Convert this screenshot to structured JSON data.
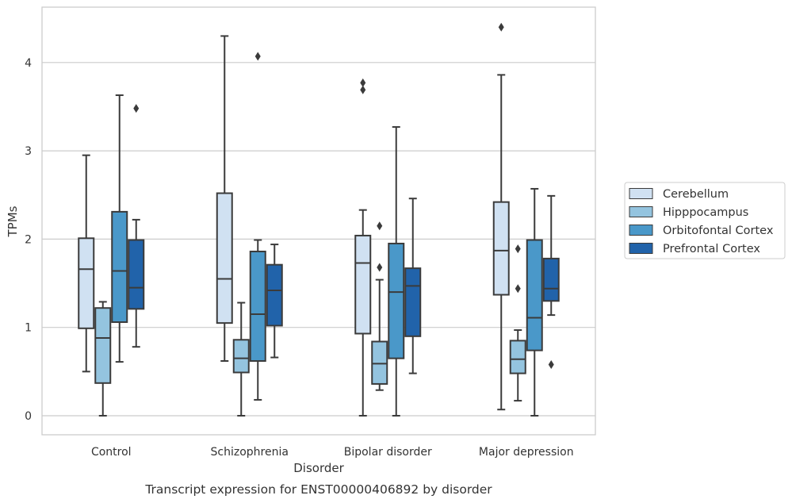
{
  "chart_data": {
    "type": "box",
    "xlabel": "Disorder",
    "ylabel": "TPMs",
    "caption": "Transcript expression for ENST00000406892 by disorder",
    "ylim": [
      -0.2,
      4.65
    ],
    "yticks": [
      "0",
      "1",
      "2",
      "3",
      "4"
    ],
    "ytick_values": [
      0,
      1,
      2,
      3,
      4
    ],
    "grid": "horizontal",
    "legend_position": "right",
    "categories": [
      "Control",
      "Schizophrenia",
      "Bipolar disorder",
      "Major depression"
    ],
    "series": [
      {
        "name": "Cerebellum",
        "color": "#d0e1f2",
        "boxes": [
          {
            "whislo": 0.5,
            "q1": 0.99,
            "med": 1.66,
            "q3": 2.01,
            "whishi": 2.95,
            "fliers": []
          },
          {
            "whislo": 0.62,
            "q1": 1.05,
            "med": 1.55,
            "q3": 2.52,
            "whishi": 4.3,
            "fliers": []
          },
          {
            "whislo": 0.0,
            "q1": 0.93,
            "med": 1.73,
            "q3": 2.04,
            "whishi": 2.33,
            "fliers": [
              3.69,
              3.77
            ]
          },
          {
            "whislo": 0.07,
            "q1": 1.37,
            "med": 1.87,
            "q3": 2.42,
            "whishi": 3.86,
            "fliers": [
              4.4
            ]
          }
        ]
      },
      {
        "name": "Hipppocampus",
        "color": "#94c4df",
        "boxes": [
          {
            "whislo": 0.0,
            "q1": 0.37,
            "med": 0.88,
            "q3": 1.22,
            "whishi": 1.29,
            "fliers": []
          },
          {
            "whislo": 0.0,
            "q1": 0.49,
            "med": 0.65,
            "q3": 0.86,
            "whishi": 1.28,
            "fliers": []
          },
          {
            "whislo": 0.29,
            "q1": 0.36,
            "med": 0.59,
            "q3": 0.84,
            "whishi": 1.54,
            "fliers": [
              1.68,
              2.15
            ]
          },
          {
            "whislo": 0.17,
            "q1": 0.48,
            "med": 0.64,
            "q3": 0.85,
            "whishi": 0.97,
            "fliers": [
              1.44,
              1.89
            ]
          }
        ]
      },
      {
        "name": "Orbitofontal Cortex",
        "color": "#4a98c9",
        "boxes": [
          {
            "whislo": 0.61,
            "q1": 1.06,
            "med": 1.64,
            "q3": 2.31,
            "whishi": 3.63,
            "fliers": []
          },
          {
            "whislo": 0.18,
            "q1": 0.62,
            "med": 1.15,
            "q3": 1.86,
            "whishi": 1.99,
            "fliers": [
              4.07
            ]
          },
          {
            "whislo": 0.0,
            "q1": 0.65,
            "med": 1.4,
            "q3": 1.95,
            "whishi": 3.27,
            "fliers": []
          },
          {
            "whislo": 0.0,
            "q1": 0.74,
            "med": 1.11,
            "q3": 1.99,
            "whishi": 2.57,
            "fliers": []
          }
        ]
      },
      {
        "name": "Prefrontal Cortex",
        "color": "#2163aa",
        "boxes": [
          {
            "whislo": 0.78,
            "q1": 1.21,
            "med": 1.45,
            "q3": 1.99,
            "whishi": 2.22,
            "fliers": [
              3.48
            ]
          },
          {
            "whislo": 0.66,
            "q1": 1.02,
            "med": 1.42,
            "q3": 1.71,
            "whishi": 1.94,
            "fliers": []
          },
          {
            "whislo": 0.48,
            "q1": 0.9,
            "med": 1.47,
            "q3": 1.67,
            "whishi": 2.46,
            "fliers": []
          },
          {
            "whislo": 1.14,
            "q1": 1.3,
            "med": 1.44,
            "q3": 1.78,
            "whishi": 2.49,
            "fliers": [
              0.58
            ]
          }
        ]
      }
    ]
  }
}
